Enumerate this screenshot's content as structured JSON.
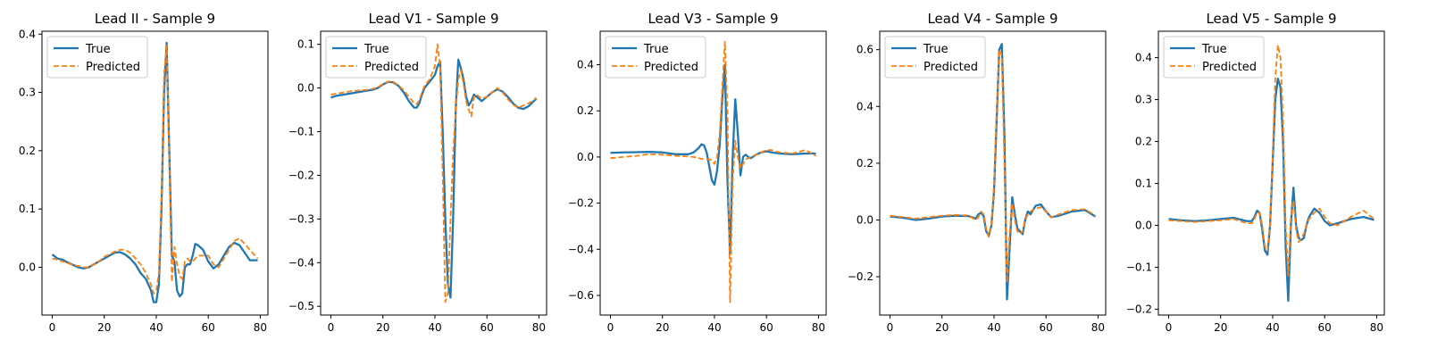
{
  "colors": {
    "true": "#1f77b4",
    "predicted": "#ff7f0e",
    "frame": "#000000"
  },
  "chart_data": [
    {
      "type": "line",
      "title": "Lead II - Sample 9",
      "xlabel": "",
      "ylabel": "",
      "xlim": [
        -3.95,
        82.95
      ],
      "ylim": [
        -0.082,
        0.405
      ],
      "xticks": [
        0,
        20,
        40,
        60,
        80
      ],
      "yticks": [
        0.0,
        0.1,
        0.2,
        0.3,
        0.4
      ],
      "ytick_labels": [
        "0.0",
        "0.1",
        "0.2",
        "0.3",
        "0.4"
      ],
      "legend": {
        "position": "top-left",
        "entries": [
          "True",
          "Predicted"
        ]
      },
      "grid": false,
      "series": [
        {
          "name": "True",
          "style": "solid",
          "x": [
            0,
            2,
            4,
            6,
            8,
            10,
            12,
            14,
            16,
            18,
            20,
            22,
            24,
            26,
            28,
            30,
            32,
            34,
            36,
            38,
            39,
            40,
            41,
            42,
            43,
            44,
            45,
            46,
            47,
            48,
            49,
            50,
            51,
            52,
            53,
            54,
            55,
            56,
            58,
            60,
            62,
            64,
            66,
            68,
            70,
            72,
            74,
            76,
            78,
            79
          ],
          "values": [
            0.022,
            0.015,
            0.013,
            0.008,
            0.004,
            0.0,
            -0.002,
            0.0,
            0.005,
            0.01,
            0.015,
            0.02,
            0.025,
            0.026,
            0.022,
            0.015,
            0.005,
            -0.01,
            -0.02,
            -0.04,
            -0.06,
            -0.06,
            -0.03,
            0.1,
            0.3,
            0.385,
            0.2,
            0.02,
            0.01,
            -0.04,
            -0.05,
            -0.045,
            0.0,
            0.005,
            0.005,
            0.02,
            0.04,
            0.038,
            0.03,
            0.01,
            -0.002,
            0.005,
            0.02,
            0.035,
            0.042,
            0.038,
            0.025,
            0.012,
            0.012,
            0.012
          ]
        },
        {
          "name": "Predicted",
          "style": "dashed",
          "x": [
            0,
            2,
            4,
            6,
            8,
            10,
            12,
            14,
            16,
            18,
            20,
            22,
            24,
            26,
            28,
            30,
            32,
            34,
            36,
            38,
            39,
            40,
            41,
            42,
            43,
            44,
            45,
            46,
            47,
            48,
            49,
            50,
            51,
            52,
            53,
            54,
            55,
            56,
            58,
            60,
            62,
            64,
            66,
            68,
            70,
            72,
            74,
            76,
            78,
            79
          ],
          "values": [
            0.015,
            0.013,
            0.01,
            0.007,
            0.004,
            0.002,
            0.0,
            0.0,
            0.005,
            0.01,
            0.018,
            0.022,
            0.027,
            0.03,
            0.03,
            0.025,
            0.015,
            0.005,
            -0.01,
            -0.03,
            -0.045,
            -0.04,
            -0.01,
            0.12,
            0.33,
            0.38,
            0.18,
            -0.025,
            0.035,
            0.005,
            -0.015,
            -0.02,
            0.01,
            0.015,
            0.01,
            0.01,
            0.015,
            0.02,
            0.02,
            0.02,
            0.005,
            0.0,
            0.015,
            0.03,
            0.045,
            0.05,
            0.04,
            0.03,
            0.02,
            0.015
          ]
        }
      ]
    },
    {
      "type": "line",
      "title": "Lead V1 - Sample 9",
      "xlabel": "",
      "ylabel": "",
      "xlim": [
        -3.95,
        82.95
      ],
      "ylim": [
        -0.52,
        0.13
      ],
      "xticks": [
        0,
        20,
        40,
        60,
        80
      ],
      "yticks": [
        -0.5,
        -0.4,
        -0.3,
        -0.2,
        -0.1,
        0.0,
        0.1
      ],
      "ytick_labels": [
        "−0.5",
        "−0.4",
        "−0.3",
        "−0.2",
        "−0.1",
        "0.0",
        "0.1"
      ],
      "legend": {
        "position": "top-left",
        "entries": [
          "True",
          "Predicted"
        ]
      },
      "grid": false,
      "series": [
        {
          "name": "True",
          "style": "solid",
          "x": [
            0,
            2,
            4,
            6,
            8,
            10,
            12,
            14,
            16,
            18,
            20,
            22,
            24,
            26,
            28,
            30,
            32,
            33,
            34,
            35,
            36,
            38,
            40,
            41,
            42,
            43,
            44,
            45,
            46,
            47,
            48,
            49,
            50,
            51,
            52,
            53,
            54,
            55,
            56,
            58,
            60,
            62,
            64,
            66,
            68,
            70,
            72,
            74,
            76,
            78,
            79
          ],
          "values": [
            -0.022,
            -0.018,
            -0.016,
            -0.014,
            -0.012,
            -0.01,
            -0.008,
            -0.006,
            -0.004,
            0.0,
            0.008,
            0.014,
            0.013,
            0.005,
            -0.01,
            -0.03,
            -0.045,
            -0.045,
            -0.035,
            -0.015,
            0.0,
            0.015,
            0.03,
            0.05,
            0.06,
            -0.1,
            -0.3,
            -0.45,
            -0.48,
            -0.3,
            -0.05,
            0.065,
            0.045,
            0.02,
            -0.02,
            -0.04,
            -0.03,
            -0.015,
            -0.02,
            -0.03,
            -0.02,
            -0.01,
            -0.003,
            -0.008,
            -0.02,
            -0.035,
            -0.045,
            -0.048,
            -0.042,
            -0.03,
            -0.025
          ]
        },
        {
          "name": "Predicted",
          "style": "dashed",
          "x": [
            0,
            2,
            4,
            6,
            8,
            10,
            12,
            14,
            16,
            18,
            20,
            22,
            24,
            26,
            28,
            30,
            32,
            33,
            34,
            35,
            36,
            38,
            40,
            41,
            42,
            43,
            44,
            45,
            46,
            47,
            48,
            49,
            50,
            51,
            52,
            53,
            54,
            55,
            56,
            58,
            60,
            62,
            64,
            66,
            68,
            70,
            72,
            74,
            76,
            78,
            79
          ],
          "values": [
            -0.015,
            -0.013,
            -0.011,
            -0.009,
            -0.007,
            -0.006,
            -0.005,
            -0.004,
            -0.002,
            0.002,
            0.009,
            0.015,
            0.014,
            0.006,
            -0.005,
            -0.02,
            -0.035,
            -0.037,
            -0.028,
            -0.01,
            0.005,
            0.02,
            0.05,
            0.1,
            0.05,
            -0.2,
            -0.49,
            -0.47,
            -0.3,
            -0.15,
            -0.05,
            0.02,
            0.04,
            0.01,
            -0.03,
            -0.05,
            -0.065,
            -0.02,
            -0.015,
            -0.025,
            -0.02,
            -0.01,
            0.0,
            -0.01,
            -0.025,
            -0.038,
            -0.045,
            -0.04,
            -0.035,
            -0.028,
            -0.022
          ]
        }
      ]
    },
    {
      "type": "line",
      "title": "Lead V3 - Sample 9",
      "xlabel": "",
      "ylabel": "",
      "xlim": [
        -3.95,
        82.95
      ],
      "ylim": [
        -0.685,
        0.545
      ],
      "xticks": [
        0,
        20,
        40,
        60,
        80
      ],
      "yticks": [
        -0.6,
        -0.4,
        -0.2,
        0.0,
        0.2,
        0.4
      ],
      "ytick_labels": [
        "−0.6",
        "−0.4",
        "−0.2",
        "0.0",
        "0.2",
        "0.4"
      ],
      "legend": {
        "position": "top-left",
        "entries": [
          "True",
          "Predicted"
        ]
      },
      "grid": false,
      "series": [
        {
          "name": "True",
          "style": "solid",
          "x": [
            0,
            5,
            10,
            15,
            20,
            25,
            30,
            32,
            34,
            35,
            36,
            37,
            38,
            39,
            40,
            41,
            42,
            43,
            44,
            45,
            46,
            47,
            48,
            49,
            50,
            51,
            52,
            53,
            54,
            56,
            58,
            60,
            62,
            65,
            70,
            75,
            79
          ],
          "values": [
            0.018,
            0.02,
            0.021,
            0.022,
            0.02,
            0.012,
            0.012,
            0.02,
            0.04,
            0.055,
            0.05,
            0.02,
            -0.04,
            -0.1,
            -0.12,
            -0.06,
            0.05,
            0.25,
            0.4,
            -0.1,
            -0.42,
            0.0,
            0.25,
            0.1,
            -0.08,
            0.0,
            0.01,
            0.0,
            -0.005,
            0.01,
            0.02,
            0.025,
            0.02,
            0.015,
            0.012,
            0.015,
            0.015
          ]
        },
        {
          "name": "Predicted",
          "style": "dashed",
          "x": [
            0,
            5,
            10,
            15,
            20,
            25,
            30,
            32,
            34,
            35,
            36,
            37,
            38,
            39,
            40,
            41,
            42,
            43,
            44,
            45,
            46,
            47,
            48,
            49,
            50,
            51,
            52,
            53,
            54,
            56,
            58,
            60,
            62,
            65,
            70,
            75,
            79
          ],
          "values": [
            -0.005,
            0.0,
            0.005,
            0.012,
            0.01,
            0.005,
            0.002,
            0.0,
            -0.005,
            -0.008,
            -0.01,
            -0.01,
            -0.01,
            -0.015,
            -0.03,
            0.0,
            0.1,
            0.3,
            0.5,
            0.2,
            -0.63,
            -0.1,
            0.07,
            0.0,
            -0.05,
            -0.03,
            -0.01,
            -0.005,
            0.0,
            0.01,
            0.02,
            0.03,
            0.03,
            0.02,
            0.015,
            0.03,
            0.005
          ]
        }
      ]
    },
    {
      "type": "line",
      "title": "Lead V4 - Sample 9",
      "xlabel": "",
      "ylabel": "",
      "xlim": [
        -3.95,
        82.95
      ],
      "ylim": [
        -0.335,
        0.665
      ],
      "xticks": [
        0,
        20,
        40,
        60,
        80
      ],
      "yticks": [
        -0.2,
        0.0,
        0.2,
        0.4,
        0.6
      ],
      "ytick_labels": [
        "−0.2",
        "0.0",
        "0.2",
        "0.4",
        "0.6"
      ],
      "legend": {
        "position": "top-left",
        "entries": [
          "True",
          "Predicted"
        ]
      },
      "grid": false,
      "series": [
        {
          "name": "True",
          "style": "solid",
          "x": [
            0,
            5,
            10,
            15,
            20,
            25,
            30,
            33,
            34,
            35,
            36,
            37,
            38,
            39,
            40,
            41,
            42,
            43,
            44,
            45,
            46,
            47,
            48,
            49,
            50,
            51,
            52,
            53,
            54,
            56,
            58,
            60,
            62,
            65,
            70,
            75,
            79
          ],
          "values": [
            0.012,
            0.008,
            0.0,
            0.005,
            0.012,
            0.015,
            0.014,
            0.005,
            0.02,
            0.025,
            0.015,
            -0.04,
            -0.055,
            -0.02,
            0.1,
            0.35,
            0.6,
            0.62,
            0.3,
            -0.28,
            -0.1,
            0.08,
            0.02,
            -0.03,
            -0.04,
            -0.05,
            0.0,
            0.03,
            0.02,
            0.05,
            0.055,
            0.03,
            0.01,
            0.015,
            0.03,
            0.035,
            0.012
          ]
        },
        {
          "name": "Predicted",
          "style": "dashed",
          "x": [
            0,
            5,
            10,
            15,
            20,
            25,
            30,
            33,
            34,
            35,
            36,
            37,
            38,
            39,
            40,
            41,
            42,
            43,
            44,
            45,
            46,
            47,
            48,
            49,
            50,
            51,
            52,
            53,
            54,
            56,
            58,
            60,
            62,
            65,
            70,
            75,
            79
          ],
          "values": [
            0.015,
            0.01,
            0.005,
            0.01,
            0.015,
            0.018,
            0.016,
            0.0,
            0.01,
            0.03,
            0.02,
            -0.03,
            -0.06,
            -0.02,
            0.12,
            0.38,
            0.6,
            0.58,
            0.2,
            -0.22,
            -0.05,
            0.06,
            0.0,
            -0.04,
            -0.05,
            -0.04,
            0.0,
            0.02,
            0.03,
            0.04,
            0.045,
            0.03,
            0.01,
            0.02,
            0.035,
            0.038,
            0.015
          ]
        }
      ]
    },
    {
      "type": "line",
      "title": "Lead V5 - Sample 9",
      "xlabel": "",
      "ylabel": "",
      "xlim": [
        -3.95,
        82.95
      ],
      "ylim": [
        -0.214,
        0.463
      ],
      "xticks": [
        0,
        20,
        40,
        60,
        80
      ],
      "yticks": [
        -0.2,
        -0.1,
        0.0,
        0.1,
        0.2,
        0.3,
        0.4
      ],
      "ytick_labels": [
        "−0.2",
        "−0.1",
        "0.0",
        "0.1",
        "0.2",
        "0.3",
        "0.4"
      ],
      "legend": {
        "position": "top-left",
        "entries": [
          "True",
          "Predicted"
        ]
      },
      "grid": false,
      "series": [
        {
          "name": "True",
          "style": "solid",
          "x": [
            0,
            5,
            10,
            15,
            20,
            25,
            30,
            32,
            33,
            34,
            35,
            36,
            37,
            38,
            39,
            40,
            41,
            42,
            43,
            44,
            45,
            46,
            47,
            48,
            49,
            50,
            51,
            52,
            53,
            54,
            56,
            58,
            60,
            62,
            65,
            70,
            75,
            79
          ],
          "values": [
            0.015,
            0.012,
            0.01,
            0.012,
            0.015,
            0.018,
            0.01,
            0.01,
            0.02,
            0.035,
            0.03,
            -0.01,
            -0.06,
            -0.07,
            0.0,
            0.15,
            0.3,
            0.35,
            0.33,
            0.2,
            -0.05,
            -0.18,
            0.0,
            0.09,
            0.0,
            -0.03,
            -0.035,
            -0.03,
            0.0,
            0.02,
            0.04,
            0.03,
            0.01,
            0.0,
            0.005,
            0.015,
            0.02,
            0.013
          ]
        },
        {
          "name": "Predicted",
          "style": "dashed",
          "x": [
            0,
            5,
            10,
            15,
            20,
            25,
            30,
            32,
            33,
            34,
            35,
            36,
            37,
            38,
            39,
            40,
            41,
            42,
            43,
            44,
            45,
            46,
            47,
            48,
            49,
            50,
            51,
            52,
            53,
            54,
            56,
            58,
            60,
            62,
            65,
            70,
            75,
            79
          ],
          "values": [
            0.012,
            0.01,
            0.008,
            0.01,
            0.012,
            0.015,
            0.005,
            0.005,
            0.015,
            0.03,
            0.03,
            0.0,
            -0.05,
            -0.06,
            0.0,
            0.17,
            0.35,
            0.43,
            0.4,
            0.25,
            0.0,
            -0.12,
            0.02,
            0.06,
            -0.01,
            -0.04,
            -0.03,
            -0.02,
            0.0,
            0.015,
            0.03,
            0.04,
            0.02,
            0.005,
            0.0,
            0.02,
            0.035,
            0.015
          ]
        }
      ]
    }
  ]
}
